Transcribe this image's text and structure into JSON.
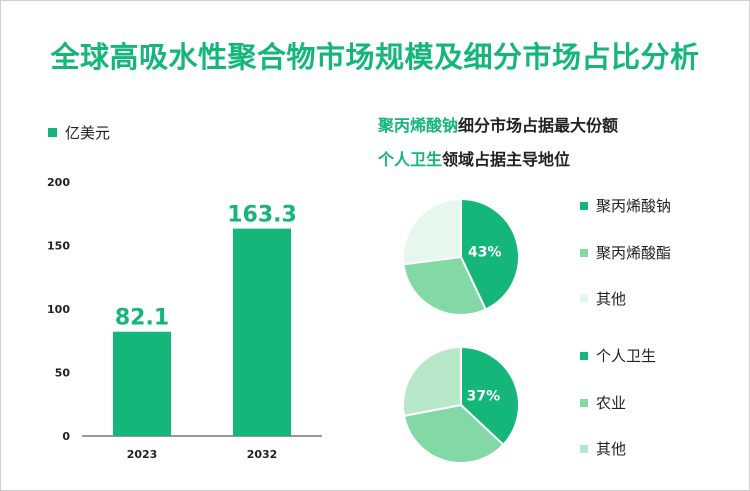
{
  "title": "全球高吸水性聚合物市场规模及细分市场占比分析",
  "colors": {
    "primary": "#14b67a",
    "accent_title": "#14b67a",
    "pie1": [
      "#14b67a",
      "#82d9a6",
      "#e6f7ee"
    ],
    "pie2": [
      "#14b67a",
      "#82d9a6",
      "#b6e8c9"
    ]
  },
  "headlines": {
    "line1_highlight": "聚丙烯酸钠",
    "line1_rest": "细分市场占据最大份额",
    "line2_highlight": "个人卫生",
    "line2_rest": "领域占据主导地位"
  },
  "chart_data": [
    {
      "type": "bar",
      "categories": [
        "2023",
        "2032"
      ],
      "series": [
        {
          "name": "亿美元",
          "values": [
            82.1,
            163.3
          ]
        }
      ],
      "value_labels": [
        "82.1",
        "163.3"
      ],
      "ylim": [
        0,
        200
      ],
      "yticks": [
        0,
        50,
        100,
        150,
        200
      ],
      "xlabel": "",
      "ylabel": "",
      "grid": false,
      "legend": "top-left"
    },
    {
      "type": "pie",
      "labels": [
        "聚丙烯酸钠",
        "聚丙烯酸酯",
        "其他"
      ],
      "values": [
        43,
        30,
        27
      ],
      "center_label": "43%",
      "legend": "right"
    },
    {
      "type": "pie",
      "labels": [
        "个人卫生",
        "农业",
        "其他"
      ],
      "values": [
        37,
        35,
        28
      ],
      "center_label": "37%",
      "legend": "right"
    }
  ]
}
